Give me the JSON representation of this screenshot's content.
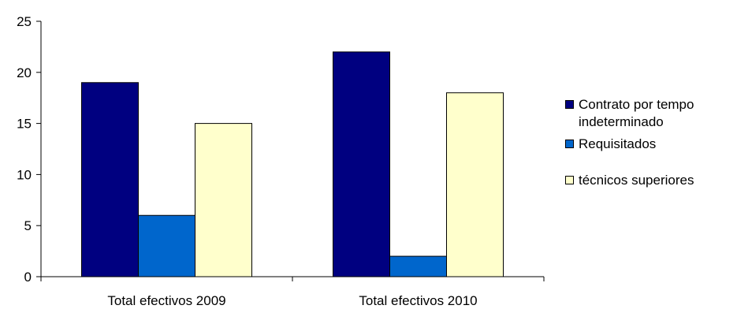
{
  "chart_data": {
    "type": "bar",
    "categories": [
      "Total efectivos 2009",
      "Total efectivos 2010"
    ],
    "series": [
      {
        "name": "Contrato por tempo indeterminado",
        "values": [
          19,
          22
        ],
        "color": "#000080"
      },
      {
        "name": "Requisitados",
        "values": [
          6,
          2
        ],
        "color": "#0066cc"
      },
      {
        "name": "técnicos superiores",
        "values": [
          15,
          18
        ],
        "color": "#ffffcc"
      }
    ],
    "yticks": [
      0,
      5,
      10,
      15,
      20,
      25
    ],
    "ylim": [
      0,
      25
    ],
    "title": "",
    "xlabel": "",
    "ylabel": "",
    "grid": false,
    "legend_position": "right"
  }
}
